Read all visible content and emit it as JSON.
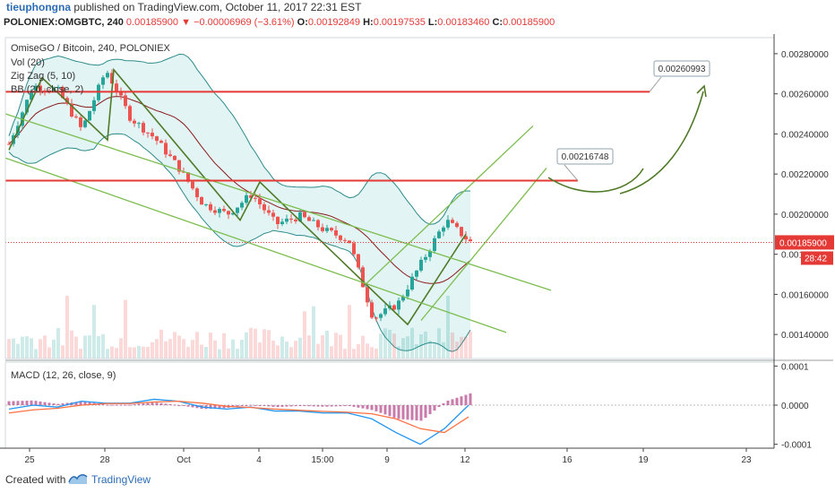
{
  "header": {
    "author": "tieuphongna",
    "published_text": "published on TradingView.com, October 11, 2017 22:31 EST",
    "symbol": "POLONIEX:OMGBTC, 240",
    "last": "0.00185900",
    "change_arrow": "▼",
    "change": "−0.00006969 (−3.61%)",
    "o_label": "O:",
    "o_value": "0.00192849",
    "h_label": "H:",
    "h_value": "0.00197535",
    "l_label": "L:",
    "l_value": "0.00183460",
    "c_label": "C:",
    "c_value": "0.00185900"
  },
  "footer": {
    "created_with": "Created with",
    "brand": "TradingView",
    "logo_icon": "tradingview-logo-icon"
  },
  "colors": {
    "bull": "#26a69a",
    "bear": "#ef5350",
    "bb_fill": "#d6efef",
    "bb_band": "#2e8b8b",
    "bb_basis": "#8b1a1a",
    "zigzag": "#4f7a28",
    "channel": "#7cbd4f",
    "resistance": "#e53935",
    "macd": "#2196f3",
    "signal": "#ff7043",
    "hist_pos": "#b64d8e"
  },
  "chart_data": [
    {
      "type": "candlestick",
      "title": "OmiseGO / Bitcoin, 240, POLONIEX",
      "indicators": [
        "Vol (20)",
        "Zig Zag (5, 10)",
        "BB (20, close, 2)"
      ],
      "price_axis_ticks": [
        "0.00280000",
        "0.00260000",
        "0.00240000",
        "0.00220000",
        "0.00200000",
        "0.00180000",
        "0.00160000",
        "0.00140000"
      ],
      "ylim": [
        0.00128,
        0.00288
      ],
      "x_ticks": [
        "25",
        "28",
        "Oct",
        "4",
        "15:00",
        "9",
        "12",
        "16",
        "19",
        "23"
      ],
      "last_price_label": "0.00185900",
      "countdown_label": "28:42",
      "annotations": [
        {
          "label": "0.00260993",
          "level": 0.00261
        },
        {
          "label": "0.00216748",
          "level": 0.002167
        }
      ],
      "anchors": [
        0.00235,
        0.00264,
        0.00262,
        0.00242,
        0.00272,
        0.00248,
        0.00238,
        0.00223,
        0.00205,
        0.002,
        0.0021,
        0.00195,
        0.00199,
        0.00192,
        0.00187,
        0.00148,
        0.00155,
        0.00176,
        0.00197,
        0.00186
      ],
      "candles_count": 104,
      "volumes_relative_max": 1.0
    },
    {
      "type": "line",
      "title": "MACD (12, 26, close, 9)",
      "axis_ticks": [
        "0.0001",
        "0.0000",
        "-0.0001"
      ],
      "ylim": [
        -0.00011,
        0.00011
      ],
      "series": [
        {
          "name": "",
          "values_sampled": [
            -1e-05,
            0.0,
            -5e-06,
            1e-05,
            5e-06,
            5e-06,
            1.5e-05,
            1e-05,
            -5e-06,
            -1e-05,
            -5e-06,
            -1.5e-05,
            -1.5e-05,
            -2e-05,
            -2e-05,
            -3.5e-05,
            -7e-05,
            -0.0001,
            -6e-05,
            0.0
          ]
        },
        {
          "name": "",
          "values_sampled": [
            -2e-05,
            -1.2e-05,
            -8e-06,
            0.0,
            4e-06,
            4e-06,
            8e-06,
            1e-05,
            5e-06,
            -3e-06,
            -6e-06,
            -1e-05,
            -1.3e-05,
            -1.6e-05,
            -1.8e-05,
            -2.2e-05,
            -3.5e-05,
            -6e-05,
            -7e-05,
            -3e-05
          ]
        }
      ]
    }
  ]
}
